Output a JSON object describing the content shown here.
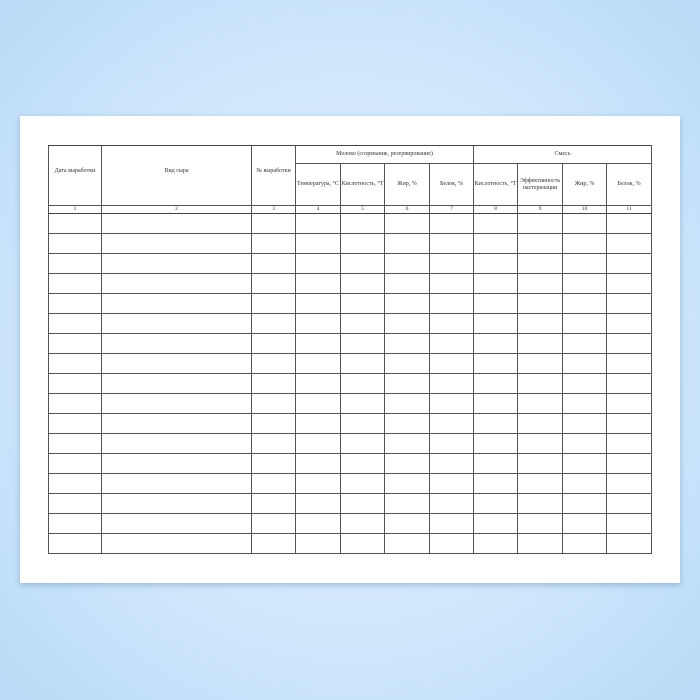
{
  "table": {
    "columns": [
      "Дата выработки",
      "Вид сыра",
      "№ выработки",
      "Температура, °С",
      "Кислотность, °Т",
      "Жир, %",
      "Белок, %",
      "Кислотность, °Т",
      "Эффективность пастеризации",
      "Жир, %",
      "Белок, %"
    ],
    "groups": [
      "Молоко (созревание, резервирование)",
      "Смесь"
    ],
    "column_numbers": [
      1,
      2,
      3,
      4,
      5,
      6,
      7,
      8,
      9,
      10,
      11
    ]
  }
}
